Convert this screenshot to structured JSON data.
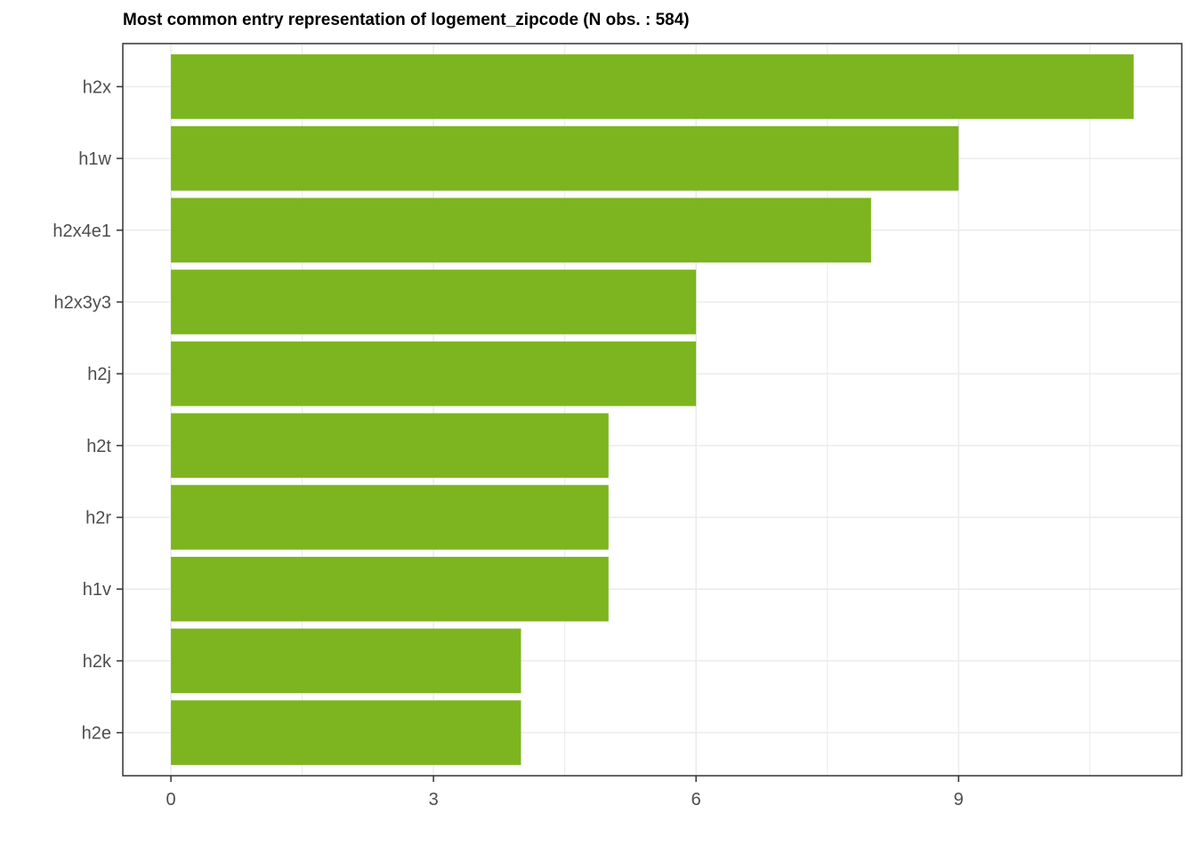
{
  "chart_data": {
    "type": "bar",
    "orientation": "horizontal",
    "title": "Most common entry representation of logement_zipcode (N obs. : 584)",
    "xlabel": "",
    "ylabel": "",
    "categories": [
      "h2x",
      "h1w",
      "h2x4e1",
      "h2x3y3",
      "h2j",
      "h2t",
      "h2r",
      "h1v",
      "h2k",
      "h2e"
    ],
    "values": [
      11,
      9,
      8,
      6,
      6,
      5,
      5,
      5,
      4,
      4
    ],
    "xlim": [
      -0.55,
      11.55
    ],
    "xticks": [
      0,
      3,
      6,
      9
    ],
    "xtick_labels": [
      "0",
      "3",
      "6",
      "9"
    ],
    "grid": true,
    "legend": "none",
    "bar_color": "#7CB51F",
    "gridline_color": "#EBEBEB",
    "panel_border_color": "#333333"
  }
}
